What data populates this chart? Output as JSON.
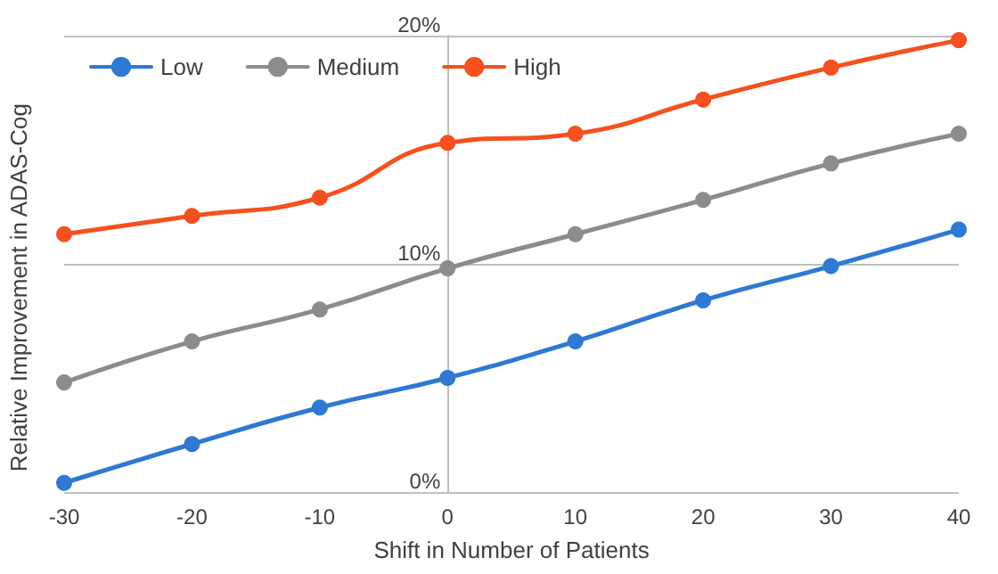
{
  "chart_data": {
    "type": "line",
    "xlabel": "Shift in Number of Patients",
    "ylabel": "Relative Improvement in ADAS-Cog",
    "x": [
      -30,
      -20,
      -10,
      0,
      10,
      20,
      30,
      40
    ],
    "series": [
      {
        "name": "Low",
        "color": "#2f78d4",
        "values": [
          0.4,
          2.1,
          3.7,
          5.0,
          6.6,
          8.4,
          9.9,
          11.5
        ]
      },
      {
        "name": "Medium",
        "color": "#8c8c8c",
        "values": [
          4.8,
          6.6,
          8.0,
          9.8,
          11.3,
          12.8,
          14.4,
          15.7
        ]
      },
      {
        "name": "High",
        "color": "#f4511e",
        "values": [
          11.3,
          12.1,
          12.9,
          15.3,
          15.7,
          17.2,
          18.6,
          19.8
        ]
      }
    ],
    "xlim": [
      -30,
      40
    ],
    "xticks": [
      -30,
      -20,
      -10,
      0,
      10,
      20,
      30,
      40
    ],
    "ylim": [
      0,
      20
    ],
    "yticks": [
      {
        "value": 0,
        "label": "0%"
      },
      {
        "value": 10,
        "label": "10%"
      },
      {
        "value": 20,
        "label": "20%"
      }
    ],
    "grid": "y",
    "legend": "top left",
    "marker": "circle",
    "line_style": "solid"
  }
}
